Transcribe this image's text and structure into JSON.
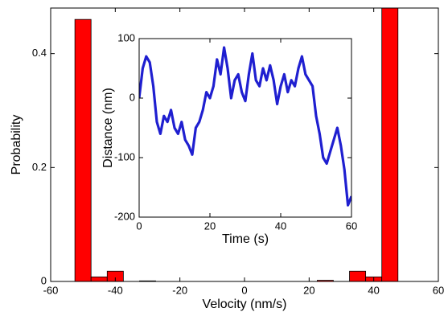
{
  "chart_data": [
    {
      "type": "histogram",
      "xlabel": "Velocity (nm/s)",
      "ylabel": "Probability",
      "bins": [
        -52.5,
        -47.5,
        -42.5,
        -37.5,
        -32.5,
        -27.5,
        -22.5,
        -17.5,
        -12.5,
        -7.5,
        -2.5,
        2.5,
        7.5,
        12.5,
        17.5,
        22.5,
        27.5,
        32.5,
        37.5,
        42.5,
        47.5
      ],
      "values": [
        0.46,
        0.008,
        0.018,
        0,
        0.001,
        0,
        0,
        0,
        0,
        0,
        0,
        0,
        0,
        0,
        0,
        0.002,
        0,
        0.018,
        0.008,
        0.5
      ],
      "color": "#ff0000",
      "xlim": [
        -60,
        60
      ],
      "xticks": [
        -60,
        -40,
        -20,
        0,
        20,
        40,
        60
      ],
      "ylim": [
        0,
        0.48
      ],
      "yticks": [
        0,
        0.2,
        0.4
      ]
    },
    {
      "type": "line",
      "xlabel": "Time (s)",
      "ylabel": "Distance (nm)",
      "x": [
        0,
        1,
        2,
        3,
        4,
        5,
        6,
        7,
        8,
        9,
        10,
        11,
        12,
        13,
        14,
        15,
        16,
        17,
        18,
        19,
        20,
        21,
        22,
        23,
        24,
        25,
        26,
        27,
        28,
        29,
        30,
        31,
        32,
        33,
        34,
        35,
        36,
        37,
        38,
        39,
        40,
        41,
        42,
        43,
        44,
        45,
        46,
        47,
        48,
        49,
        50,
        51,
        52,
        53,
        54,
        55,
        56,
        57,
        58,
        59,
        60
      ],
      "series": [
        {
          "name": null,
          "color": "#1f1fd0",
          "values": [
            0,
            50,
            70,
            60,
            20,
            -40,
            -60,
            -30,
            -40,
            -20,
            -50,
            -60,
            -40,
            -70,
            -80,
            -95,
            -50,
            -40,
            -20,
            10,
            0,
            20,
            65,
            40,
            85,
            50,
            0,
            30,
            40,
            10,
            -5,
            40,
            75,
            30,
            20,
            50,
            30,
            55,
            30,
            -10,
            20,
            40,
            10,
            30,
            20,
            50,
            70,
            40,
            30,
            20,
            -30,
            -60,
            -100,
            -110,
            -90,
            -70,
            -50,
            -80,
            -120,
            -180,
            -165
          ]
        }
      ],
      "xlim": [
        0,
        60
      ],
      "xticks": [
        0,
        20,
        40,
        60
      ],
      "ylim": [
        -200,
        100
      ],
      "yticks": [
        -200,
        -100,
        0,
        100
      ]
    }
  ]
}
